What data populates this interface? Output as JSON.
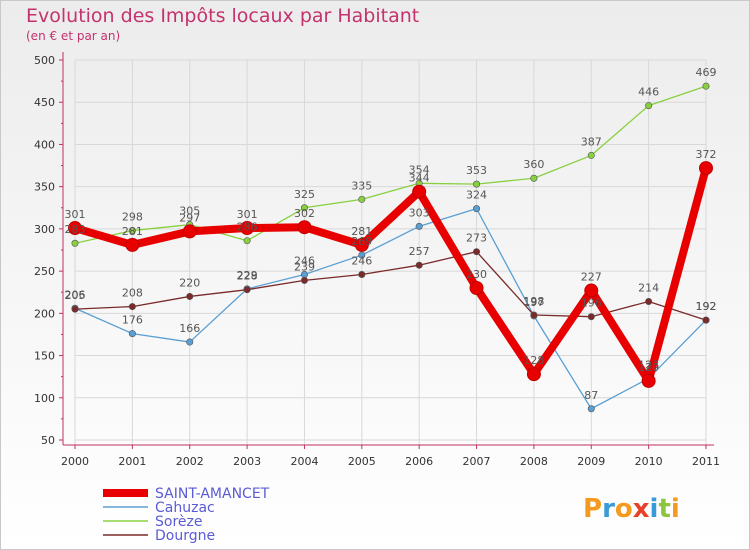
{
  "chart_data": {
    "type": "line",
    "title": "Evolution des Impôts locaux par Habitant",
    "subtitle": "(en € et par an)",
    "categories": [
      "2000",
      "2001",
      "2002",
      "2003",
      "2004",
      "2005",
      "2006",
      "2007",
      "2008",
      "2009",
      "2010",
      "2011"
    ],
    "ylim": [
      50,
      500
    ],
    "yticks": [
      50,
      100,
      150,
      200,
      250,
      300,
      350,
      400,
      450,
      500
    ],
    "series": [
      {
        "name": "SAINT-AMANCET",
        "color": "#e80000",
        "values": [
          301,
          281,
          297,
          301,
          302,
          281,
          344,
          230,
          128,
          227,
          120,
          372
        ]
      },
      {
        "name": "Cahuzac",
        "color": "#5a9fd4",
        "values": [
          206,
          176,
          166,
          229,
          246,
          269,
          303,
          324,
          197,
          87,
          123,
          192
        ]
      },
      {
        "name": "Sorèze",
        "color": "#88d040",
        "values": [
          283,
          298,
          305,
          286,
          325,
          335,
          354,
          353,
          360,
          387,
          446,
          469
        ]
      },
      {
        "name": "Dourgne",
        "color": "#7a2a2a",
        "values": [
          205,
          208,
          220,
          228,
          239,
          246,
          257,
          273,
          198,
          196,
          214,
          192
        ]
      }
    ]
  },
  "brand": "Proxiti"
}
